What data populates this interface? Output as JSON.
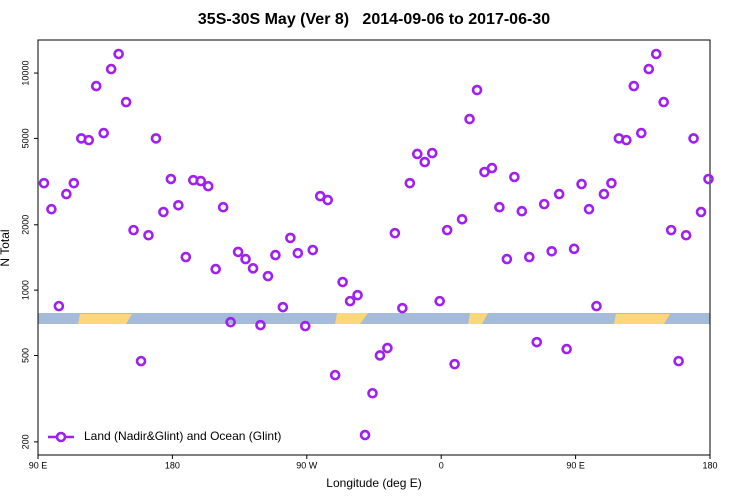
{
  "chart_data": {
    "type": "scatter",
    "title": "35S-30S May (Ver 8)   2014-09-06 to 2017-06-30",
    "xlabel": "Longitude (deg E)",
    "ylabel": "N Total",
    "ylog": true,
    "legend": "bottom-left",
    "series": [
      {
        "name": "Land (Nadir&Glint) and Ocean (Glint)",
        "color": "#a020f0",
        "x": [
          94,
          99,
          104,
          109,
          114,
          119,
          124,
          129,
          134,
          139,
          144,
          149,
          154,
          159,
          164,
          169,
          174,
          179,
          184,
          189,
          194,
          199,
          204,
          209,
          214,
          219,
          224,
          229,
          234,
          239,
          244,
          249,
          254,
          259,
          264,
          269,
          274,
          279,
          284,
          289,
          294,
          299,
          304,
          309,
          314,
          319,
          324,
          329,
          334,
          339,
          344,
          349,
          354,
          359,
          364,
          369,
          374,
          379,
          384,
          389,
          394,
          399,
          404,
          409,
          414,
          419,
          424,
          429,
          434,
          439,
          444,
          449,
          454,
          459,
          464,
          469,
          474,
          479,
          484,
          489,
          494,
          499,
          504,
          509,
          514,
          519,
          524,
          529,
          534,
          539
        ],
        "values": [
          3110,
          2360,
          844,
          2770,
          3110,
          5000,
          4910,
          8710,
          5290,
          10430,
          12240,
          7350,
          1890,
          471,
          1790,
          5000,
          2290,
          3250,
          2460,
          1420,
          3210,
          3180,
          3010,
          1250,
          2410,
          712,
          1500,
          1390,
          1260,
          690,
          1160,
          1450,
          835,
          1740,
          1480,
          683,
          1530,
          2710,
          2600,
          406,
          1090,
          890,
          948,
          215,
          335,
          500,
          541,
          1830,
          826,
          3110,
          4240,
          3890,
          4280,
          890,
          1890,
          456,
          2120,
          6140,
          8350,
          3500,
          3650,
          2410,
          1390,
          3320,
          2310,
          1420,
          576,
          2490,
          1510,
          2770,
          535,
          1550,
          3080,
          2360,
          844,
          2770,
          3110,
          5000,
          4910,
          8710,
          5290,
          10430,
          12240,
          7350,
          1890,
          471,
          1790,
          5000,
          2290,
          3250
        ]
      }
    ],
    "xlim": [
      90,
      540
    ],
    "xticks": [
      {
        "value": 90,
        "label": "90 E"
      },
      180,
      {
        "value": 270,
        "label": "90 W"
      },
      {
        "value": 360,
        "label": "0"
      },
      {
        "value": 450,
        "label": "90 E"
      },
      {
        "value": 540,
        "label": "180"
      }
    ],
    "ylim": [
      174,
      14200
    ],
    "yticks": [
      200,
      500,
      1000,
      2000,
      5000,
      10000
    ]
  }
}
